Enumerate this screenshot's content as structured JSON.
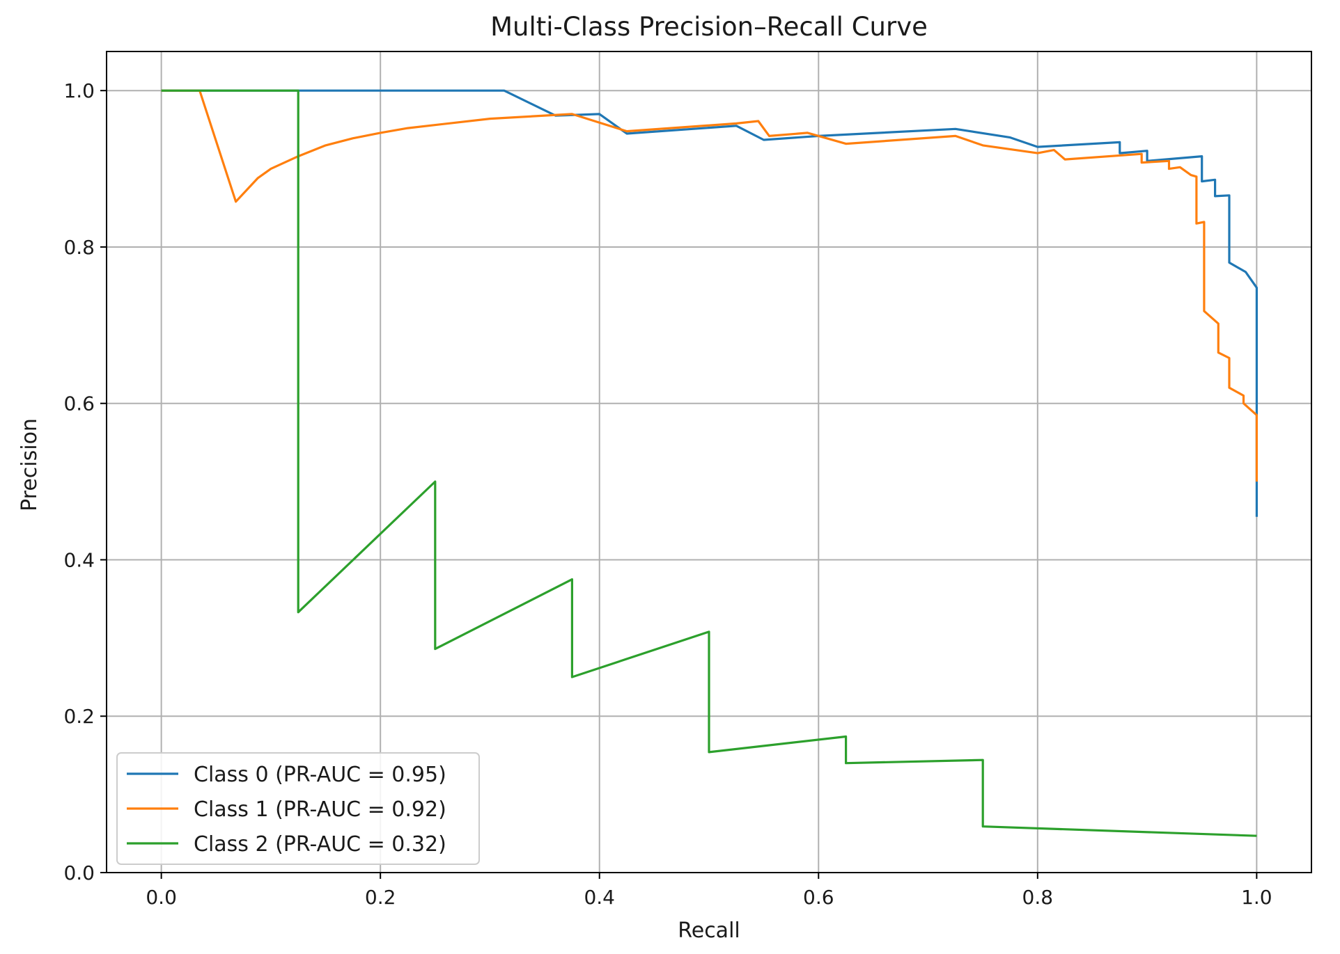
{
  "chart_data": {
    "type": "line",
    "title": "Multi-Class Precision–Recall Curve",
    "xlabel": "Recall",
    "ylabel": "Precision",
    "xlim": [
      -0.05,
      1.05
    ],
    "ylim": [
      0.0,
      1.05
    ],
    "xticks": [
      0.0,
      0.2,
      0.4,
      0.6,
      0.8,
      1.0
    ],
    "xtick_labels": [
      "0.0",
      "0.2",
      "0.4",
      "0.6",
      "0.8",
      "1.0"
    ],
    "yticks": [
      0.0,
      0.2,
      0.4,
      0.6,
      0.8,
      1.0
    ],
    "ytick_labels": [
      "0.0",
      "0.2",
      "0.4",
      "0.6",
      "0.8",
      "1.0"
    ],
    "grid": true,
    "legend": {
      "position": "lower-left"
    },
    "series": [
      {
        "name": "Class 0 (PR-AUC = 0.95)",
        "color": "#1f77b4",
        "x": [
          0.0,
          0.313,
          0.36,
          0.4,
          0.425,
          0.525,
          0.55,
          0.6,
          0.725,
          0.775,
          0.8,
          0.875,
          0.875,
          0.9,
          0.9,
          0.95,
          0.95,
          0.962,
          0.962,
          0.975,
          0.975,
          0.99,
          1.0,
          1.0
        ],
        "y": [
          1.0,
          1.0,
          0.968,
          0.97,
          0.945,
          0.955,
          0.937,
          0.942,
          0.951,
          0.94,
          0.928,
          0.934,
          0.92,
          0.923,
          0.91,
          0.916,
          0.884,
          0.886,
          0.865,
          0.866,
          0.78,
          0.768,
          0.748,
          0.455
        ]
      },
      {
        "name": "Class 1 (PR-AUC = 0.92)",
        "color": "#ff7f0e",
        "x": [
          0.0,
          0.035,
          0.068,
          0.088,
          0.1,
          0.125,
          0.15,
          0.175,
          0.2,
          0.225,
          0.3,
          0.375,
          0.425,
          0.525,
          0.545,
          0.555,
          0.59,
          0.625,
          0.725,
          0.75,
          0.8,
          0.815,
          0.825,
          0.895,
          0.895,
          0.92,
          0.92,
          0.93,
          0.94,
          0.945,
          0.945,
          0.952,
          0.952,
          0.965,
          0.965,
          0.975,
          0.975,
          0.988,
          0.988,
          1.0,
          1.0
        ],
        "y": [
          1.0,
          1.0,
          0.858,
          0.888,
          0.9,
          0.916,
          0.93,
          0.939,
          0.946,
          0.952,
          0.964,
          0.97,
          0.948,
          0.958,
          0.961,
          0.942,
          0.946,
          0.932,
          0.942,
          0.93,
          0.92,
          0.924,
          0.912,
          0.919,
          0.908,
          0.91,
          0.9,
          0.902,
          0.892,
          0.89,
          0.83,
          0.832,
          0.718,
          0.702,
          0.665,
          0.658,
          0.62,
          0.61,
          0.6,
          0.585,
          0.5
        ]
      },
      {
        "name": "Class 2 (PR-AUC = 0.32)",
        "color": "#2ca02c",
        "x": [
          0.0,
          0.125,
          0.125,
          0.25,
          0.25,
          0.375,
          0.375,
          0.5,
          0.5,
          0.625,
          0.625,
          0.75,
          0.75,
          1.0
        ],
        "y": [
          1.0,
          1.0,
          0.333,
          0.5,
          0.286,
          0.375,
          0.25,
          0.308,
          0.154,
          0.174,
          0.14,
          0.144,
          0.059,
          0.047
        ]
      }
    ]
  }
}
